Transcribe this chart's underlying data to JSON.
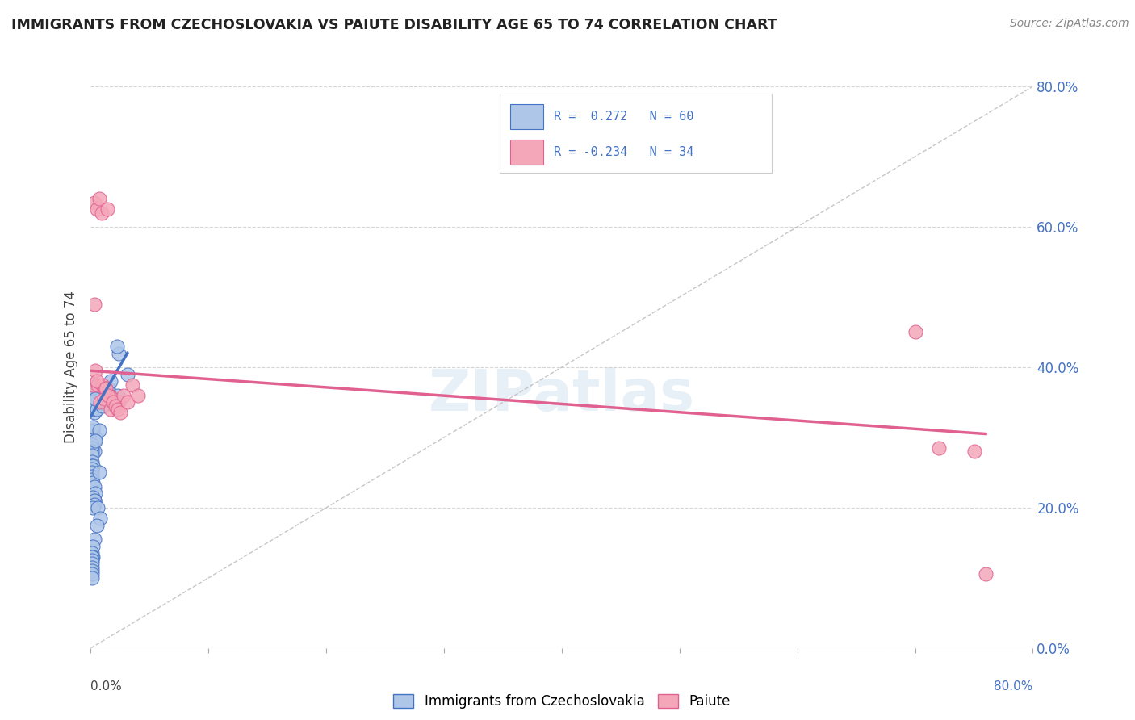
{
  "title": "IMMIGRANTS FROM CZECHOSLOVAKIA VS PAIUTE DISABILITY AGE 65 TO 74 CORRELATION CHART",
  "source": "Source: ZipAtlas.com",
  "ylabel": "Disability Age 65 to 74",
  "legend_blue_label": "Immigrants from Czechoslovakia",
  "legend_pink_label": "Paiute",
  "legend_blue_r": "0.272",
  "legend_blue_n": "60",
  "legend_pink_r": "-0.234",
  "legend_pink_n": "34",
  "xlim": [
    0.0,
    0.8
  ],
  "ylim": [
    0.0,
    0.8
  ],
  "yticks": [
    0.0,
    0.2,
    0.4,
    0.6,
    0.8
  ],
  "xticks": [
    0.0,
    0.1,
    0.2,
    0.3,
    0.4,
    0.5,
    0.6,
    0.7,
    0.8
  ],
  "blue_scatter_x": [
    0.001,
    0.002,
    0.003,
    0.001,
    0.003,
    0.002,
    0.001,
    0.001,
    0.005,
    0.004,
    0.004,
    0.003,
    0.003,
    0.002,
    0.002,
    0.001,
    0.001,
    0.001,
    0.001,
    0.001,
    0.001,
    0.002,
    0.001,
    0.001,
    0.001,
    0.001,
    0.002,
    0.003,
    0.007,
    0.01,
    0.007,
    0.004,
    0.004,
    0.003,
    0.002,
    0.003,
    0.003,
    0.002,
    0.015,
    0.015,
    0.006,
    0.008,
    0.005,
    0.003,
    0.002,
    0.001,
    0.001,
    0.002,
    0.001,
    0.001,
    0.001,
    0.001,
    0.024,
    0.022,
    0.017,
    0.023,
    0.031,
    0.001,
    0.001,
    0.001
  ],
  "blue_scatter_y": [
    0.375,
    0.375,
    0.355,
    0.37,
    0.335,
    0.34,
    0.37,
    0.35,
    0.34,
    0.355,
    0.3,
    0.295,
    0.28,
    0.31,
    0.315,
    0.29,
    0.285,
    0.28,
    0.275,
    0.265,
    0.26,
    0.26,
    0.255,
    0.25,
    0.245,
    0.24,
    0.235,
    0.23,
    0.31,
    0.345,
    0.25,
    0.295,
    0.22,
    0.21,
    0.215,
    0.21,
    0.205,
    0.2,
    0.37,
    0.365,
    0.2,
    0.185,
    0.175,
    0.155,
    0.145,
    0.135,
    0.13,
    0.13,
    0.13,
    0.125,
    0.12,
    0.115,
    0.42,
    0.43,
    0.38,
    0.36,
    0.39,
    0.11,
    0.105,
    0.1
  ],
  "pink_scatter_x": [
    0.002,
    0.004,
    0.006,
    0.003,
    0.005,
    0.007,
    0.009,
    0.01,
    0.012,
    0.014,
    0.016,
    0.018,
    0.02,
    0.022,
    0.024,
    0.003,
    0.005,
    0.008,
    0.011,
    0.013,
    0.015,
    0.017,
    0.019,
    0.021,
    0.023,
    0.025,
    0.028,
    0.031,
    0.035,
    0.04,
    0.7,
    0.72,
    0.75,
    0.76
  ],
  "pink_scatter_y": [
    0.375,
    0.395,
    0.375,
    0.635,
    0.625,
    0.64,
    0.62,
    0.375,
    0.37,
    0.625,
    0.36,
    0.355,
    0.345,
    0.34,
    0.35,
    0.49,
    0.38,
    0.35,
    0.355,
    0.37,
    0.36,
    0.34,
    0.35,
    0.345,
    0.34,
    0.335,
    0.36,
    0.35,
    0.375,
    0.36,
    0.45,
    0.285,
    0.28,
    0.105
  ],
  "blue_line_x": [
    0.0,
    0.031
  ],
  "blue_line_y": [
    0.33,
    0.42
  ],
  "pink_line_x": [
    0.0,
    0.76
  ],
  "pink_line_y": [
    0.395,
    0.305
  ],
  "dash_line_x": [
    0.0,
    0.8
  ],
  "dash_line_y": [
    0.0,
    0.8
  ],
  "blue_dot_color": "#aec6e8",
  "pink_dot_color": "#f4a7b9",
  "blue_line_color": "#4472c4",
  "pink_line_color": "#e06090",
  "dash_line_color": "#b8b8b8",
  "right_yaxis_color": "#4472c4",
  "background_color": "#ffffff",
  "grid_color": "#cccccc"
}
